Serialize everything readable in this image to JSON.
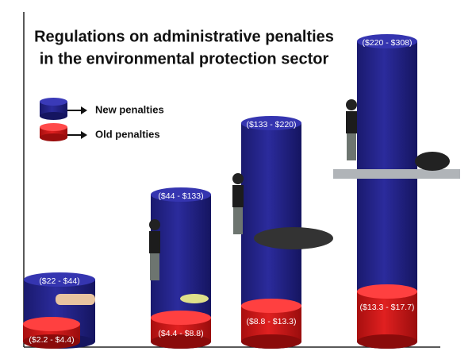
{
  "title": {
    "line1": "Regulations on administrative penalties",
    "line2": "in the environmental protection sector"
  },
  "legend": {
    "new": "New penalties",
    "old": "Old penalties"
  },
  "columns": [
    {
      "new_label": "($22 - $44)",
      "old_label": "($2.2 - $4.4)"
    },
    {
      "new_label": "($44 - $133)",
      "old_label": "($4.4 - $8.8)"
    },
    {
      "new_label": "($133 - $220)",
      "old_label": "($8.8 - $13.3)"
    },
    {
      "new_label": "($220 - $308)",
      "old_label": "($13.3 - $17.7)"
    }
  ]
}
